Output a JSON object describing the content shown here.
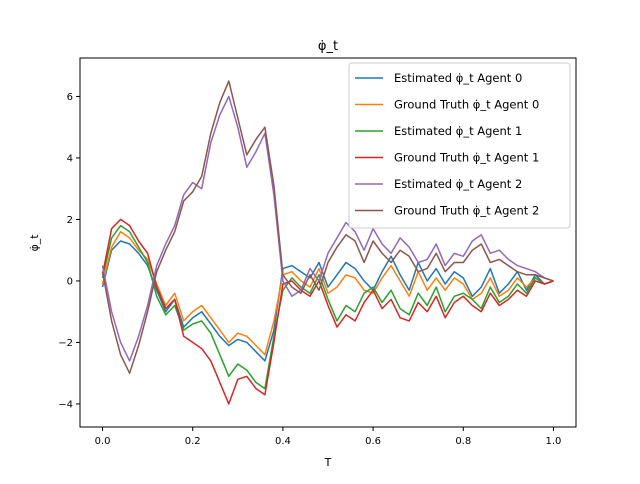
{
  "chart_data": {
    "type": "line",
    "title": "φ̇_t",
    "xlabel": "T",
    "ylabel": "φ̇_t",
    "xlim": [
      -0.05,
      1.05
    ],
    "ylim": [
      -4.75,
      7.25
    ],
    "xticks": [
      "0.0",
      "0.2",
      "0.4",
      "0.6",
      "0.8",
      "1.0"
    ],
    "yticks": [
      "−4",
      "−2",
      "0",
      "2",
      "4",
      "6"
    ],
    "grid": false,
    "legend_position": "top-right",
    "x": [
      0.0,
      0.02,
      0.04,
      0.06,
      0.08,
      0.1,
      0.12,
      0.14,
      0.16,
      0.18,
      0.2,
      0.22,
      0.24,
      0.26,
      0.28,
      0.3,
      0.32,
      0.34,
      0.36,
      0.38,
      0.4,
      0.42,
      0.44,
      0.46,
      0.48,
      0.5,
      0.52,
      0.54,
      0.56,
      0.58,
      0.6,
      0.62,
      0.64,
      0.66,
      0.68,
      0.7,
      0.72,
      0.74,
      0.76,
      0.78,
      0.8,
      0.82,
      0.84,
      0.86,
      0.88,
      0.9,
      0.92,
      0.94,
      0.96,
      0.98,
      1.0
    ],
    "series": [
      {
        "name": "Estimated φ̇_t Agent 0",
        "color": "#1f77b4",
        "values": [
          -0.2,
          1.0,
          1.3,
          1.2,
          0.9,
          0.5,
          -0.3,
          -1.0,
          -0.6,
          -1.5,
          -1.2,
          -1.0,
          -1.4,
          -1.8,
          -2.1,
          -1.9,
          -2.0,
          -2.3,
          -2.6,
          -1.6,
          0.4,
          0.5,
          0.3,
          0.1,
          0.6,
          -0.2,
          0.2,
          0.6,
          0.4,
          0.0,
          -0.3,
          0.3,
          0.8,
          0.2,
          -0.3,
          0.6,
          0.0,
          0.4,
          -0.1,
          0.3,
          0.1,
          -0.5,
          -0.2,
          0.4,
          -0.4,
          -0.1,
          0.3,
          -0.3,
          0.2,
          -0.1,
          0.0
        ]
      },
      {
        "name": "Ground Truth φ̇_t Agent 0",
        "color": "#ff7f0e",
        "values": [
          -0.1,
          1.1,
          1.6,
          1.4,
          1.0,
          0.7,
          -0.1,
          -0.8,
          -0.4,
          -1.3,
          -1.0,
          -0.8,
          -1.2,
          -1.6,
          -2.0,
          -1.7,
          -1.8,
          -2.1,
          -2.4,
          -1.3,
          0.2,
          0.3,
          0.0,
          -0.2,
          0.4,
          -0.4,
          -0.2,
          0.2,
          0.1,
          -0.3,
          -0.4,
          0.1,
          0.5,
          0.0,
          -0.5,
          0.3,
          -0.3,
          0.1,
          -0.3,
          0.1,
          -0.1,
          -0.6,
          -0.4,
          0.1,
          -0.5,
          -0.3,
          0.1,
          -0.2,
          0.1,
          -0.1,
          0.0
        ]
      },
      {
        "name": "Estimated φ̇_t Agent 1",
        "color": "#2ca02c",
        "values": [
          0.1,
          1.4,
          1.8,
          1.6,
          1.1,
          0.6,
          -0.5,
          -1.1,
          -0.8,
          -1.6,
          -1.4,
          -1.3,
          -1.7,
          -2.4,
          -3.1,
          -2.7,
          -2.9,
          -3.3,
          -3.5,
          -1.8,
          -0.3,
          0.1,
          -0.2,
          -0.4,
          0.2,
          -0.6,
          -1.3,
          -0.8,
          -1.0,
          -0.4,
          -0.2,
          -0.7,
          -0.3,
          -0.9,
          -1.1,
          -0.4,
          -0.8,
          -0.2,
          -1.0,
          -0.5,
          -0.4,
          -0.6,
          -0.9,
          -0.2,
          -0.7,
          -0.5,
          -0.1,
          -0.4,
          0.1,
          -0.1,
          0.0
        ]
      },
      {
        "name": "Ground Truth φ̇_t Agent 1",
        "color": "#d62728",
        "values": [
          0.2,
          1.7,
          2.0,
          1.8,
          1.3,
          0.9,
          -0.2,
          -0.9,
          -0.6,
          -1.8,
          -2.0,
          -2.2,
          -2.6,
          -3.3,
          -4.0,
          -3.2,
          -3.1,
          -3.5,
          -3.7,
          -2.0,
          -0.1,
          0.0,
          -0.3,
          -0.5,
          0.0,
          -0.8,
          -1.5,
          -1.1,
          -1.3,
          -0.7,
          -0.3,
          -0.9,
          -0.6,
          -1.2,
          -1.3,
          -0.7,
          -1.0,
          -0.5,
          -1.2,
          -0.7,
          -0.5,
          -0.8,
          -1.0,
          -0.4,
          -0.8,
          -0.6,
          -0.3,
          -0.5,
          0.0,
          -0.1,
          0.0
        ]
      },
      {
        "name": "Estimated φ̇_t Agent 2",
        "color": "#9467bd",
        "values": [
          0.5,
          -1.0,
          -2.0,
          -2.6,
          -1.8,
          -0.8,
          0.5,
          1.2,
          1.8,
          2.8,
          3.2,
          3.0,
          4.5,
          5.4,
          6.0,
          5.0,
          3.7,
          4.2,
          4.8,
          2.8,
          0.0,
          -0.5,
          -0.3,
          0.4,
          0.0,
          0.9,
          1.4,
          1.9,
          1.6,
          1.0,
          1.7,
          1.2,
          0.9,
          1.4,
          1.1,
          0.6,
          0.7,
          1.2,
          0.5,
          0.9,
          0.8,
          1.3,
          1.5,
          0.9,
          1.0,
          0.7,
          0.5,
          0.4,
          0.3,
          0.1,
          0.0
        ]
      },
      {
        "name": "Ground Truth φ̇_t Agent 2",
        "color": "#8c564b",
        "values": [
          0.3,
          -1.3,
          -2.4,
          -3.0,
          -2.1,
          -1.0,
          0.3,
          1.0,
          1.6,
          2.6,
          2.9,
          3.4,
          4.8,
          5.8,
          6.5,
          5.3,
          4.1,
          4.6,
          5.0,
          3.1,
          0.2,
          -0.2,
          -0.4,
          0.2,
          -0.3,
          0.6,
          1.1,
          1.5,
          1.3,
          0.6,
          1.3,
          0.9,
          0.6,
          1.0,
          0.8,
          0.3,
          0.4,
          0.9,
          0.3,
          0.6,
          0.6,
          1.0,
          1.2,
          0.6,
          0.7,
          0.5,
          0.3,
          0.2,
          0.2,
          0.1,
          0.0
        ]
      }
    ]
  }
}
